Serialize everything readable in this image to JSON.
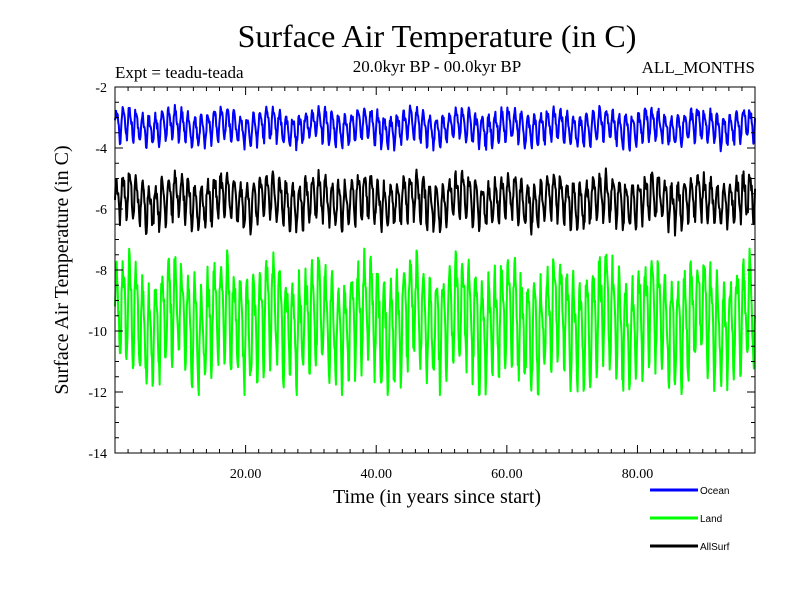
{
  "chart_data": {
    "type": "line",
    "title": "Surface Air Temperature (in C)",
    "subtitle": "20.0kyr BP - 00.0kyr BP",
    "experiment_label": "Expt = teadu-teada",
    "months_label": "ALL_MONTHS",
    "xlabel": "Time (in years since start)",
    "ylabel": "Surface Air Temperature (in C)",
    "xlim": [
      0,
      98
    ],
    "ylim": [
      -14,
      -2
    ],
    "x_ticks": [
      20,
      40,
      60,
      80
    ],
    "x_tick_labels": [
      "20.00",
      "40.00",
      "60.00",
      "80.00"
    ],
    "y_ticks": [
      -14,
      -12,
      -10,
      -8,
      -6,
      -4,
      -2
    ],
    "y_tick_labels": [
      "-14",
      "-12",
      "-10",
      "-8",
      "-6",
      "-4",
      "-2"
    ],
    "samples_per_year": 12,
    "series": [
      {
        "name": "Ocean",
        "color": "#0000ff",
        "mean": -3.3,
        "seasonal_amplitude": 0.45,
        "min": -4.35,
        "max": -2.4
      },
      {
        "name": "Land",
        "color": "#00ff00",
        "mean": -9.6,
        "seasonal_amplitude": 1.5,
        "min": -12.1,
        "max": -7.3
      },
      {
        "name": "AllSurf",
        "color": "#000000",
        "mean": -5.7,
        "seasonal_amplitude": 0.65,
        "min": -6.9,
        "max": -4.2
      }
    ],
    "legend": [
      {
        "label": "Ocean",
        "color": "#0000ff"
      },
      {
        "label": "Land",
        "color": "#00ff00"
      },
      {
        "label": "AllSurf",
        "color": "#000000"
      }
    ],
    "legend_position": "bottom-right"
  }
}
